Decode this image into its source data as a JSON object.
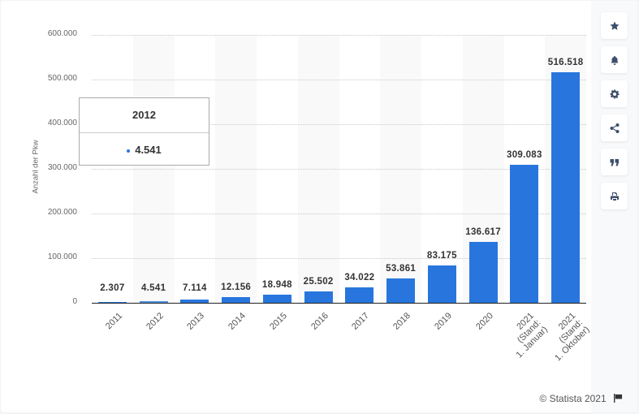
{
  "chart_data": {
    "type": "bar",
    "title": "",
    "xlabel": "",
    "ylabel": "Anzahl der Pkw",
    "ylim": [
      0,
      600000
    ],
    "yticks": [
      "0",
      "100.000",
      "200.000",
      "300.000",
      "400.000",
      "500.000",
      "600.000"
    ],
    "grid": true,
    "legend": "none",
    "categories": [
      "2011",
      "2012",
      "2013",
      "2014",
      "2015",
      "2016",
      "2017",
      "2018",
      "2019",
      "2020",
      "2021 (Stand: 1. Januar)",
      "2021 (Stand: 1. Oktober)"
    ],
    "values": [
      2307,
      4541,
      7114,
      12156,
      18948,
      25502,
      34022,
      53861,
      83175,
      136617,
      309083,
      516518
    ],
    "value_labels": [
      "2.307",
      "4.541",
      "7.114",
      "12.156",
      "18.948",
      "25.502",
      "34.022",
      "53.861",
      "83.175",
      "136.617",
      "309.083",
      "516.518"
    ],
    "bar_color": "#2876dd",
    "hover_bar_color": "#4f8fdc"
  },
  "axis": {
    "ylabel": "Anzahl der Pkw",
    "yticks": [
      "0",
      "100.000",
      "200.000",
      "300.000",
      "400.000",
      "500.000",
      "600.000"
    ],
    "xlabels": [
      "2011",
      "2012",
      "2013",
      "2014",
      "2015",
      "2016",
      "2017",
      "2018",
      "2019",
      "2020",
      "2021\n(Stand:\n1. Januar)",
      "2021\n(Stand:\n1. Oktober)"
    ]
  },
  "tooltip": {
    "title": "2012",
    "value": "4.541"
  },
  "sidebar": {
    "buttons": [
      {
        "icon": "star-icon",
        "label": "Favorit"
      },
      {
        "icon": "bell-icon",
        "label": "Benachrichtigung"
      },
      {
        "icon": "gear-icon",
        "label": "Einstellungen"
      },
      {
        "icon": "share-icon",
        "label": "Teilen"
      },
      {
        "icon": "quote-icon",
        "label": "Zitieren"
      },
      {
        "icon": "print-icon",
        "label": "Drucken"
      }
    ]
  },
  "footer": {
    "copyright": "© Statista 2021"
  }
}
